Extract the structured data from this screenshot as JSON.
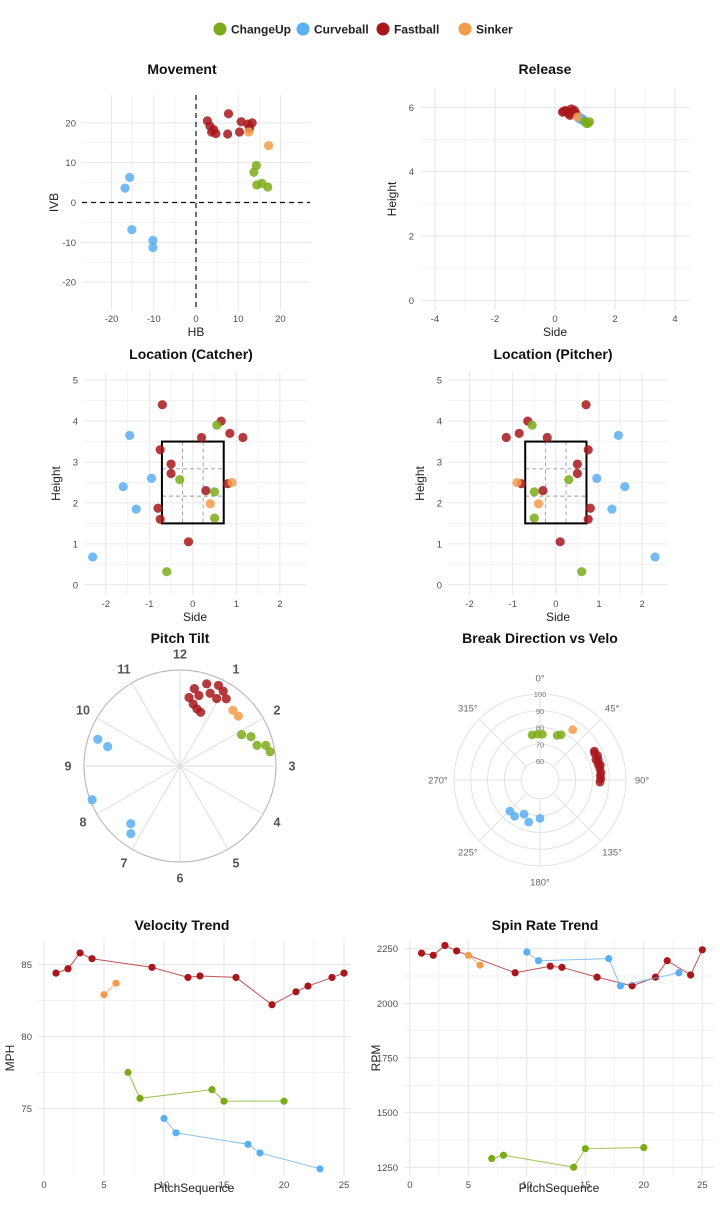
{
  "legend": {
    "items": [
      {
        "label": "ChangeUp",
        "color": "#7cab1a"
      },
      {
        "label": "Curveball",
        "color": "#5aaef2"
      },
      {
        "label": "Fastball",
        "color": "#a8171b"
      },
      {
        "label": "Sinker",
        "color": "#f59c4a"
      }
    ]
  },
  "pitch_colors": {
    "ChangeUp": "#7cab1a",
    "Curveball": "#5aaef2",
    "Fastball": "#a8171b",
    "Sinker": "#f59c4a"
  },
  "chart_data": [
    {
      "id": "movement",
      "type": "scatter",
      "title": "Movement",
      "xlabel": "HB",
      "ylabel": "IVB",
      "xlim": [
        -27,
        27
      ],
      "ylim": [
        -27,
        27
      ],
      "xticks": [
        -20,
        -10,
        0,
        10,
        20
      ],
      "yticks": [
        -20,
        -10,
        0,
        10,
        20
      ],
      "reference_lines": "dashed lines at HB=0 and IVB=0",
      "series": [
        {
          "name": "Curveball",
          "points": [
            [
              -15.7,
              6.3
            ],
            [
              -16.8,
              3.6
            ],
            [
              -15.2,
              -6.8
            ],
            [
              -10.2,
              -9.5
            ],
            [
              -10.2,
              -11.3
            ]
          ]
        },
        {
          "name": "Fastball",
          "points": [
            [
              2.7,
              20.5
            ],
            [
              7.7,
              22.3
            ],
            [
              10.7,
              20.3
            ],
            [
              3.3,
              19.2
            ],
            [
              4.2,
              18.3
            ],
            [
              3.7,
              17.7
            ],
            [
              4.7,
              17.3
            ],
            [
              7.5,
              17.2
            ],
            [
              12.3,
              19.7
            ],
            [
              13.3,
              20.0
            ],
            [
              10.3,
              17.7
            ],
            [
              12.7,
              18.7
            ]
          ]
        },
        {
          "name": "ChangeUp",
          "points": [
            [
              14.3,
              9.3
            ],
            [
              13.7,
              7.6
            ],
            [
              14.4,
              4.4
            ],
            [
              15.6,
              4.8
            ],
            [
              17.0,
              3.9
            ]
          ]
        },
        {
          "name": "Sinker",
          "points": [
            [
              17.2,
              14.3
            ],
            [
              12.5,
              17.7
            ]
          ]
        }
      ]
    },
    {
      "id": "release",
      "type": "scatter",
      "title": "Release",
      "xlabel": "Side",
      "ylabel": "Height",
      "xlim": [
        -4.5,
        4.5
      ],
      "ylim": [
        -0.3,
        6.6
      ],
      "xticks": [
        -4,
        -2,
        0,
        2,
        4
      ],
      "yticks": [
        0,
        2,
        4,
        6
      ],
      "series": [
        {
          "name": "Fastball",
          "points": [
            [
              0.25,
              5.85
            ],
            [
              0.35,
              5.9
            ],
            [
              0.45,
              5.8
            ],
            [
              0.55,
              5.95
            ],
            [
              0.6,
              5.85
            ],
            [
              0.5,
              5.75
            ],
            [
              0.4,
              5.85
            ],
            [
              0.65,
              5.9
            ],
            [
              0.7,
              5.8
            ],
            [
              0.3,
              5.88
            ]
          ]
        },
        {
          "name": "Curveball",
          "points": [
            [
              0.8,
              5.65
            ],
            [
              0.9,
              5.6
            ],
            [
              0.95,
              5.62
            ],
            [
              0.85,
              5.68
            ]
          ]
        },
        {
          "name": "ChangeUp",
          "points": [
            [
              1.0,
              5.55
            ],
            [
              1.1,
              5.5
            ],
            [
              1.15,
              5.55
            ],
            [
              1.05,
              5.5
            ]
          ]
        },
        {
          "name": "Sinker",
          "points": [
            [
              0.75,
              5.7
            ]
          ]
        }
      ]
    },
    {
      "id": "location_catcher",
      "type": "scatter",
      "title": "Location (Catcher)",
      "xlabel": "Side",
      "ylabel": "Height",
      "xlim": [
        -2.5,
        2.6
      ],
      "ylim": [
        -0.25,
        5.2
      ],
      "xticks": [
        -2,
        -1,
        0,
        1,
        2
      ],
      "yticks": [
        0,
        1,
        2,
        3,
        4,
        5
      ],
      "strike_zone": {
        "x": [
          -0.71,
          0.71
        ],
        "y": [
          1.5,
          3.5
        ]
      },
      "series": [
        {
          "name": "Fastball",
          "points": [
            [
              -0.7,
              4.4
            ],
            [
              0.2,
              3.6
            ],
            [
              0.65,
              4.0
            ],
            [
              0.85,
              3.7
            ],
            [
              1.15,
              3.6
            ],
            [
              -0.75,
              3.3
            ],
            [
              -0.5,
              2.95
            ],
            [
              -0.5,
              2.72
            ],
            [
              0.3,
              2.3
            ],
            [
              0.8,
              2.47
            ],
            [
              -0.8,
              1.87
            ],
            [
              -0.75,
              1.6
            ],
            [
              -0.1,
              1.05
            ]
          ]
        },
        {
          "name": "Curveball",
          "points": [
            [
              -1.45,
              3.65
            ],
            [
              -0.95,
              2.6
            ],
            [
              -1.6,
              2.4
            ],
            [
              -1.3,
              1.85
            ],
            [
              -2.3,
              0.68
            ]
          ]
        },
        {
          "name": "ChangeUp",
          "points": [
            [
              0.55,
              3.9
            ],
            [
              -0.3,
              2.57
            ],
            [
              0.5,
              2.27
            ],
            [
              0.5,
              1.63
            ],
            [
              -0.6,
              0.32
            ]
          ]
        },
        {
          "name": "Sinker",
          "points": [
            [
              0.9,
              2.5
            ],
            [
              0.4,
              1.98
            ]
          ]
        }
      ]
    },
    {
      "id": "location_pitcher",
      "type": "scatter",
      "title": "Location (Pitcher)",
      "xlabel": "Side",
      "ylabel": "Height",
      "xlim": [
        -2.5,
        2.6
      ],
      "ylim": [
        -0.25,
        5.2
      ],
      "xticks": [
        -2,
        -1,
        0,
        1,
        2
      ],
      "yticks": [
        0,
        1,
        2,
        3,
        4,
        5
      ],
      "strike_zone": {
        "x": [
          -0.71,
          0.71
        ],
        "y": [
          1.5,
          3.5
        ]
      },
      "series": [
        {
          "name": "Fastball",
          "points": [
            [
              0.7,
              4.4
            ],
            [
              -0.2,
              3.6
            ],
            [
              -0.65,
              4.0
            ],
            [
              -0.85,
              3.7
            ],
            [
              -1.15,
              3.6
            ],
            [
              0.75,
              3.3
            ],
            [
              0.5,
              2.95
            ],
            [
              0.5,
              2.72
            ],
            [
              -0.3,
              2.3
            ],
            [
              -0.8,
              2.47
            ],
            [
              0.8,
              1.87
            ],
            [
              0.75,
              1.6
            ],
            [
              0.1,
              1.05
            ]
          ]
        },
        {
          "name": "Curveball",
          "points": [
            [
              1.45,
              3.65
            ],
            [
              0.95,
              2.6
            ],
            [
              1.6,
              2.4
            ],
            [
              1.3,
              1.85
            ],
            [
              2.3,
              0.68
            ]
          ]
        },
        {
          "name": "ChangeUp",
          "points": [
            [
              -0.55,
              3.9
            ],
            [
              0.3,
              2.57
            ],
            [
              -0.5,
              2.27
            ],
            [
              -0.5,
              1.63
            ],
            [
              0.6,
              0.32
            ]
          ]
        },
        {
          "name": "Sinker",
          "points": [
            [
              -0.9,
              2.5
            ],
            [
              -0.4,
              1.98
            ]
          ]
        }
      ]
    },
    {
      "id": "pitch_tilt",
      "type": "scatter",
      "title": "Pitch Tilt",
      "hour_labels": [
        "12",
        "1",
        "2",
        "3",
        "4",
        "5",
        "6",
        "7",
        "8",
        "9",
        "10",
        "11"
      ],
      "value_encoding": "[clock hour, radius fraction]",
      "series": [
        {
          "name": "Fastball",
          "points": [
            [
              0.25,
              0.72
            ],
            [
              0.4,
              0.66
            ],
            [
              0.55,
              0.62
            ],
            [
              0.7,
              0.6
            ],
            [
              0.5,
              0.76
            ],
            [
              0.35,
              0.82
            ],
            [
              0.75,
              0.82
            ],
            [
              0.95,
              0.8
            ],
            [
              0.85,
              0.93
            ],
            [
              1.0,
              0.9
            ],
            [
              0.6,
              0.9
            ],
            [
              1.15,
              0.85
            ]
          ]
        },
        {
          "name": "Sinker",
          "points": [
            [
              1.45,
              0.8
            ],
            [
              1.65,
              0.8
            ]
          ]
        },
        {
          "name": "ChangeUp",
          "points": [
            [
              2.1,
              0.72
            ],
            [
              2.25,
              0.8
            ],
            [
              2.5,
              0.83
            ],
            [
              2.55,
              0.92
            ],
            [
              2.7,
              0.95
            ]
          ]
        },
        {
          "name": "Curveball",
          "points": [
            [
              9.6,
              0.9
            ],
            [
              9.5,
              0.78
            ],
            [
              8.3,
              0.98
            ],
            [
              7.35,
              0.79
            ],
            [
              7.2,
              0.87
            ]
          ]
        }
      ]
    },
    {
      "id": "break_direction",
      "type": "scatter",
      "title": "Break Direction vs Velo",
      "angle_labels": [
        "0°",
        "45°",
        "90°",
        "135°",
        "180°",
        "225°",
        "270°",
        "315°"
      ],
      "radial_ticks": [
        60,
        70,
        80,
        90,
        100
      ],
      "value_encoding": "[direction degrees, velocity]",
      "series": [
        {
          "name": "ChangeUp",
          "points": [
            [
              25,
              78.5
            ],
            [
              21,
              77.2
            ],
            [
              3,
              76
            ],
            [
              -3,
              76.1
            ],
            [
              -10,
              76.0
            ]
          ]
        },
        {
          "name": "Sinker",
          "points": [
            [
              33,
              84.5
            ]
          ]
        },
        {
          "name": "Fastball",
          "points": [
            [
              62,
              85.4
            ],
            [
              67,
              86.0
            ],
            [
              71,
              85.5
            ],
            [
              75,
              84.6
            ],
            [
              79,
              85.0
            ],
            [
              83,
              85.3
            ],
            [
              86,
              84.8
            ],
            [
              89,
              84.9
            ],
            [
              92,
              84.5
            ],
            [
              64,
              85.0
            ],
            [
              70,
              84.2
            ],
            [
              76,
              85.8
            ]
          ]
        },
        {
          "name": "Curveball",
          "points": [
            [
              195,
              74.7
            ],
            [
              180,
              71.6
            ],
            [
              215,
              75.1
            ],
            [
              224,
              74.5
            ],
            [
              205,
              71.2
            ]
          ]
        }
      ]
    },
    {
      "id": "velocity_trend",
      "type": "line",
      "title": "Velocity Trend",
      "xlabel": "PitchSequence",
      "ylabel": "MPH",
      "xlim": [
        -0.5,
        25.5
      ],
      "ylim": [
        70.3,
        86.7
      ],
      "xticks": [
        0,
        5,
        10,
        15,
        20,
        25
      ],
      "yticks": [
        75,
        80,
        85
      ],
      "series": [
        {
          "name": "Fastball",
          "x": [
            1,
            2,
            3,
            4,
            9,
            12,
            13,
            16,
            19,
            21,
            22,
            24,
            25
          ],
          "y": [
            84.4,
            84.7,
            85.8,
            85.4,
            84.8,
            84.1,
            84.2,
            84.1,
            82.2,
            83.1,
            83.5,
            84.1,
            84.4
          ]
        },
        {
          "name": "Sinker",
          "x": [
            5,
            6
          ],
          "y": [
            82.9,
            83.7
          ]
        },
        {
          "name": "ChangeUp",
          "x": [
            7,
            8,
            14,
            15,
            20
          ],
          "y": [
            77.5,
            75.7,
            76.3,
            75.5,
            75.5
          ]
        },
        {
          "name": "Curveball",
          "x": [
            10,
            11,
            17,
            18,
            23
          ],
          "y": [
            74.3,
            73.3,
            72.5,
            71.9,
            70.8
          ]
        }
      ]
    },
    {
      "id": "spin_trend",
      "type": "line",
      "title": "Spin Rate Trend",
      "xlabel": "PitchSequence",
      "ylabel": "RPM",
      "xlim": [
        -0.5,
        26
      ],
      "ylim": [
        1210,
        2290
      ],
      "xticks": [
        0,
        5,
        10,
        15,
        20,
        25
      ],
      "yticks": [
        1250,
        1500,
        1750,
        2000,
        2250
      ],
      "series": [
        {
          "name": "Fastball",
          "x": [
            1,
            2,
            3,
            4,
            9,
            12,
            13,
            16,
            19,
            21,
            22,
            24,
            25
          ],
          "y": [
            2230,
            2220,
            2265,
            2240,
            2140,
            2170,
            2165,
            2120,
            2080,
            2120,
            2195,
            2130,
            2245
          ]
        },
        {
          "name": "Sinker",
          "x": [
            5,
            6
          ],
          "y": [
            2220,
            2175
          ]
        },
        {
          "name": "Curveball",
          "x": [
            10,
            11,
            17,
            18,
            23
          ],
          "y": [
            2235,
            2195,
            2205,
            2080,
            2140
          ]
        },
        {
          "name": "ChangeUp",
          "x": [
            7,
            8,
            14,
            15,
            20
          ],
          "y": [
            1290,
            1305,
            1250,
            1335,
            1340
          ]
        }
      ]
    }
  ]
}
